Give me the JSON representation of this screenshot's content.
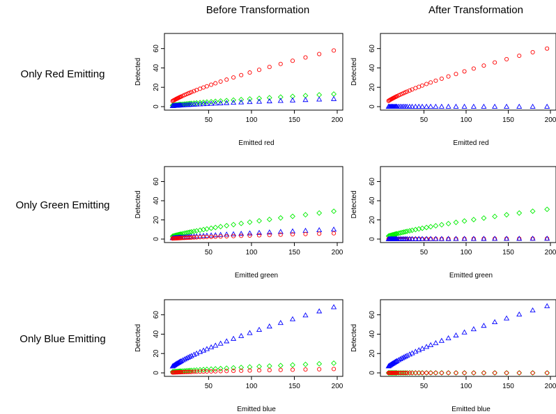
{
  "headers": {
    "col_before": "Before Transformation",
    "col_after": "After Transformation",
    "rows": [
      "Only Red Emitting",
      "Only Green Emitting",
      "Only Blue Emitting"
    ]
  },
  "colors": {
    "red": "#ff0000",
    "green": "#00ee00",
    "blue": "#0000ff"
  },
  "chart_data": [
    {
      "type": "scatter",
      "panel": "red-before",
      "xlabel": "Emitted red",
      "ylabel": "Detected",
      "xticks": [
        50,
        100,
        150,
        200
      ],
      "yticks": [
        0,
        20,
        40,
        60
      ],
      "xlim": [
        5,
        200
      ],
      "ylim": [
        0,
        72
      ],
      "series": [
        {
          "color": "red",
          "marker": "circle",
          "curve": [
            58,
            0.72
          ]
        },
        {
          "color": "green",
          "marker": "diamond",
          "curve": [
            13,
            0.72
          ]
        },
        {
          "color": "blue",
          "marker": "triangle",
          "curve": [
            8,
            0.72
          ]
        }
      ]
    },
    {
      "type": "scatter",
      "panel": "red-after",
      "xlabel": "Emitted red",
      "ylabel": "Detected",
      "xticks": [
        50,
        100,
        150,
        200
      ],
      "yticks": [
        0,
        20,
        40,
        60
      ],
      "xlim": [
        5,
        200
      ],
      "ylim": [
        0,
        72
      ],
      "series": [
        {
          "color": "red",
          "marker": "circle",
          "curve": [
            60,
            0.72
          ]
        },
        {
          "color": "blue",
          "marker": "triangle",
          "curve": [
            0,
            0.72
          ]
        }
      ]
    },
    {
      "type": "scatter",
      "panel": "green-before",
      "xlabel": "Emitted green",
      "ylabel": "Detected",
      "xticks": [
        50,
        100,
        150,
        200
      ],
      "yticks": [
        0,
        20,
        40,
        60
      ],
      "xlim": [
        5,
        200
      ],
      "ylim": [
        0,
        72
      ],
      "series": [
        {
          "color": "green",
          "marker": "diamond",
          "curve": [
            29,
            0.72
          ]
        },
        {
          "color": "blue",
          "marker": "triangle",
          "curve": [
            10,
            0.72
          ]
        },
        {
          "color": "red",
          "marker": "circle",
          "curve": [
            6,
            0.72
          ]
        }
      ]
    },
    {
      "type": "scatter",
      "panel": "green-after",
      "xlabel": "Emitted green",
      "ylabel": "Detected",
      "xticks": [
        50,
        100,
        150,
        200
      ],
      "yticks": [
        0,
        20,
        40,
        60
      ],
      "xlim": [
        5,
        200
      ],
      "ylim": [
        0,
        72
      ],
      "series": [
        {
          "color": "green",
          "marker": "diamond",
          "curve": [
            31,
            0.72
          ]
        },
        {
          "color": "red",
          "marker": "circle",
          "curve": [
            0.5,
            0.72
          ]
        },
        {
          "color": "blue",
          "marker": "triangle",
          "curve": [
            0.5,
            0.72
          ]
        }
      ]
    },
    {
      "type": "scatter",
      "panel": "blue-before",
      "xlabel": "Emitted blue",
      "ylabel": "Detected",
      "xticks": [
        50,
        100,
        150,
        200
      ],
      "yticks": [
        0,
        20,
        40,
        60
      ],
      "xlim": [
        5,
        200
      ],
      "ylim": [
        0,
        72
      ],
      "series": [
        {
          "color": "blue",
          "marker": "triangle",
          "curve": [
            68,
            0.72
          ]
        },
        {
          "color": "green",
          "marker": "diamond",
          "curve": [
            10,
            0.72
          ]
        },
        {
          "color": "red",
          "marker": "circle",
          "curve": [
            4,
            0.72
          ]
        }
      ]
    },
    {
      "type": "scatter",
      "panel": "blue-after",
      "xlabel": "Emitted blue",
      "ylabel": "Detected",
      "xticks": [
        50,
        100,
        150,
        200
      ],
      "yticks": [
        0,
        20,
        40,
        60
      ],
      "xlim": [
        5,
        200
      ],
      "ylim": [
        0,
        72
      ],
      "series": [
        {
          "color": "blue",
          "marker": "triangle",
          "curve": [
            69,
            0.72
          ]
        },
        {
          "color": "green",
          "marker": "diamond",
          "curve": [
            0,
            0.72
          ]
        },
        {
          "color": "red",
          "marker": "circle",
          "curve": [
            0,
            0.72
          ]
        }
      ]
    }
  ],
  "x_values": [
    8,
    9,
    10,
    11,
    12,
    13,
    14,
    15,
    16,
    17,
    18,
    20,
    22,
    24,
    26,
    28,
    30,
    33,
    36,
    40,
    44,
    48,
    53,
    58,
    64,
    71,
    79,
    88,
    98,
    109,
    121,
    134,
    148,
    163,
    179,
    196
  ]
}
